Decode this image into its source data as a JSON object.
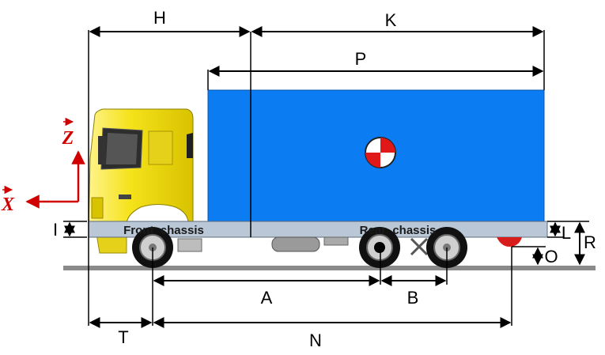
{
  "dimensions": {
    "H": "H",
    "K": "K",
    "P": "P",
    "I": "I",
    "L": "L",
    "R": "R",
    "O": "O",
    "A": "A",
    "B": "B",
    "T": "T",
    "N": "N"
  },
  "chassis": {
    "front": "Front  chassis",
    "rear": "Rear  chassis"
  },
  "axes": {
    "z": "Z",
    "x": "X"
  },
  "colors": {
    "box": "#0b7cf2",
    "cab": "#f5e21a",
    "chassis": "#b9c7d6",
    "axis": "#d00000",
    "ground": "#888888"
  },
  "icons": {
    "center_of_gravity": "center-of-gravity-marker"
  }
}
